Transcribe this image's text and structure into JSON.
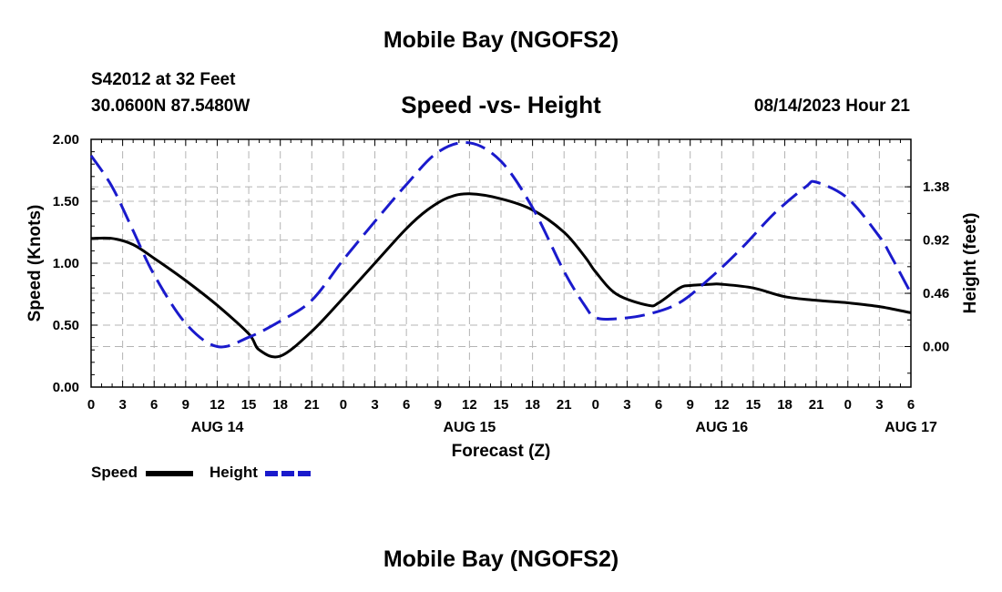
{
  "page": {
    "title": "Mobile Bay (NGOFS2)",
    "station": "S42012 at 32 Feet",
    "coords": "30.0600N  87.5480W",
    "timestamp": "08/14/2023 Hour 21",
    "bottom_title": "Mobile Bay (NGOFS2)"
  },
  "chart_data": {
    "type": "line",
    "title": "Speed -vs- Height",
    "xlabel": "Forecast (Z)",
    "ylabel": "Speed (Knots)",
    "y2label": "Height (feet)",
    "x_unit": "hours since Aug 14 00Z",
    "xlim": [
      0,
      78
    ],
    "ylim": [
      0,
      2.0
    ],
    "y2lim": [
      -0.35,
      1.79
    ],
    "grid": true,
    "y_ticks": [
      "0.00",
      "0.50",
      "1.00",
      "1.50",
      "2.00"
    ],
    "y2_ticks": [
      "0.00",
      "0.46",
      "0.92",
      "1.38"
    ],
    "x_tick_labels": [
      "0",
      "3",
      "6",
      "9",
      "12",
      "15",
      "18",
      "21",
      "0",
      "3",
      "6",
      "9",
      "12",
      "15",
      "18",
      "21",
      "0",
      "3",
      "6",
      "9",
      "12",
      "15",
      "18",
      "21",
      "0",
      "3",
      "6"
    ],
    "date_labels": [
      {
        "hour": 12,
        "label": "AUG 14"
      },
      {
        "hour": 36,
        "label": "AUG 15"
      },
      {
        "hour": 60,
        "label": "AUG 16"
      },
      {
        "hour": 78,
        "label": "AUG 17"
      }
    ],
    "legend": [
      {
        "name": "Speed",
        "color": "#000000",
        "dash": "solid"
      },
      {
        "name": "Height",
        "color": "#1a1acc",
        "dash": "dashed"
      }
    ],
    "series": [
      {
        "name": "Speed",
        "axis": "left",
        "x": [
          0,
          2,
          4,
          6,
          9,
          12,
          15,
          16,
          18,
          21,
          24,
          27,
          30,
          32,
          34,
          36,
          39,
          42,
          45,
          47,
          48,
          50,
          53,
          54,
          56,
          57,
          59,
          60,
          63,
          66,
          69,
          72,
          75,
          78
        ],
        "values": [
          1.2,
          1.2,
          1.15,
          1.04,
          0.86,
          0.66,
          0.43,
          0.3,
          0.25,
          0.45,
          0.72,
          1.0,
          1.28,
          1.43,
          1.53,
          1.56,
          1.52,
          1.43,
          1.25,
          1.05,
          0.93,
          0.75,
          0.66,
          0.68,
          0.8,
          0.82,
          0.83,
          0.83,
          0.8,
          0.73,
          0.7,
          0.68,
          0.65,
          0.6
        ]
      },
      {
        "name": "Height",
        "axis": "right",
        "x": [
          0,
          2,
          4,
          6,
          9,
          12,
          15,
          18,
          21,
          24,
          27,
          30,
          33,
          36,
          39,
          42,
          45,
          47,
          48,
          50,
          53,
          56,
          59,
          62,
          65,
          68,
          69,
          72,
          75,
          76,
          78
        ],
        "values": [
          1.65,
          1.38,
          1.0,
          0.62,
          0.2,
          0.0,
          0.08,
          0.22,
          0.4,
          0.75,
          1.08,
          1.4,
          1.68,
          1.76,
          1.6,
          1.2,
          0.65,
          0.35,
          0.25,
          0.24,
          0.28,
          0.38,
          0.6,
          0.86,
          1.15,
          1.38,
          1.42,
          1.28,
          0.95,
          0.8,
          0.46
        ]
      }
    ]
  }
}
